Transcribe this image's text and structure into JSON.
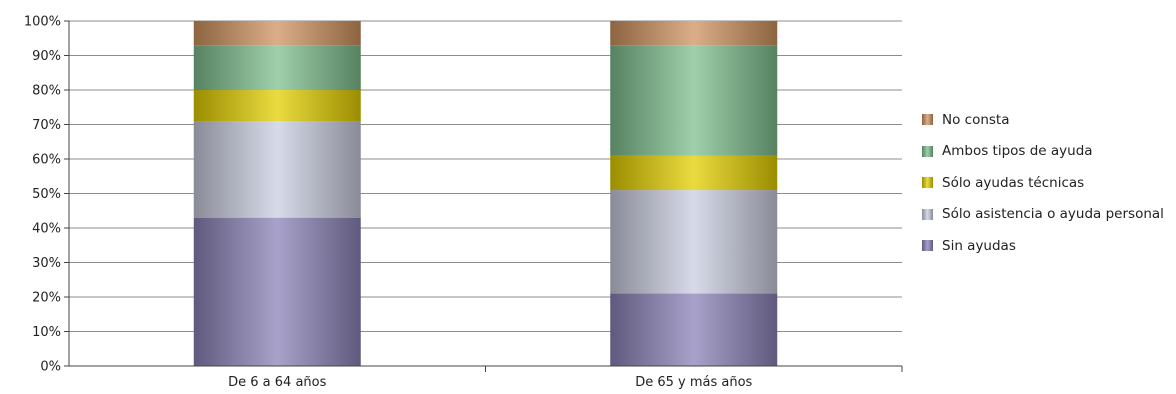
{
  "chart_data": {
    "type": "bar",
    "stacked": true,
    "percent": true,
    "categories": [
      "De 6 a 64 años",
      "De 65 y más años"
    ],
    "series": [
      {
        "name": "Sin ayudas",
        "values": [
          43,
          21
        ],
        "color": "#8b83b8"
      },
      {
        "name": "Sólo asistencia o ayuda personal",
        "values": [
          28,
          30
        ],
        "color": "#c9cde0"
      },
      {
        "name": "Sólo ayudas técnicas",
        "values": [
          9,
          10
        ],
        "color": "#e3cf00"
      },
      {
        "name": "Ambos tipos de ayuda",
        "values": [
          13,
          32
        ],
        "color": "#7fbf8f"
      },
      {
        "name": "No consta",
        "values": [
          7,
          7
        ],
        "color": "#cf9360"
      }
    ],
    "y_ticks": [
      "0%",
      "10%",
      "20%",
      "30%",
      "40%",
      "50%",
      "60%",
      "70%",
      "80%",
      "90%",
      "100%"
    ],
    "ylim": [
      0,
      100
    ],
    "grid": true,
    "legend_position": "right"
  }
}
